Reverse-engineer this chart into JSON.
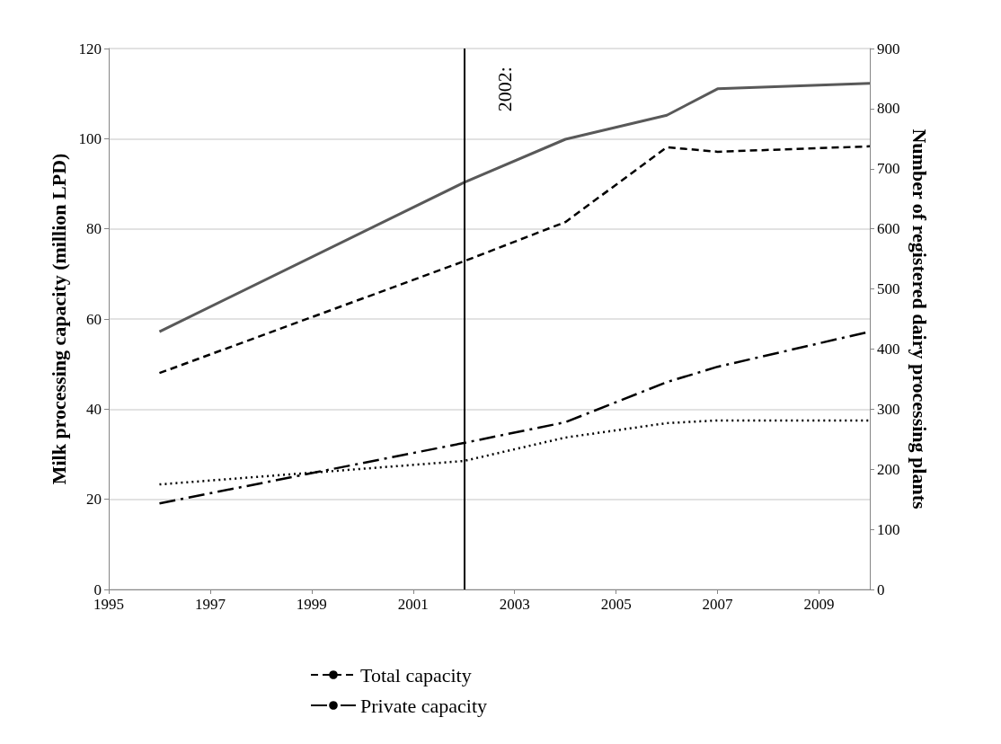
{
  "chart_data": {
    "type": "line",
    "x": [
      1996,
      2002,
      2004,
      2006,
      2007,
      2010
    ],
    "series": [
      {
        "color": "#595959",
        "line_style": "solid",
        "axis": "y2",
        "values": [
          429,
          677,
          749,
          789,
          833,
          842
        ]
      },
      {
        "name": "Total capacity",
        "color": "#000000",
        "line_style": "dashed",
        "values": [
          48.0,
          72.8,
          81.5,
          98.1,
          97.1,
          98.3
        ]
      },
      {
        "name": "Private capacity",
        "color": "#000000",
        "line_style": "dashdot",
        "values": [
          19.1,
          32.5,
          37.1,
          46.0,
          49.4,
          57.2
        ]
      },
      {
        "color": "#000000",
        "line_style": "dotted",
        "values": [
          23.3,
          28.5,
          33.7,
          36.9,
          37.5,
          37.5
        ]
      }
    ],
    "ylabel": "Milk processing capacity (million LPD)",
    "y2label": "Number of registered dairy processing plants",
    "xlim": [
      1995,
      2010
    ],
    "xticks": [
      1995,
      1997,
      1999,
      2001,
      2003,
      2005,
      2007,
      2009
    ],
    "ylim": [
      0,
      120
    ],
    "yticks": [
      0,
      20,
      40,
      60,
      80,
      100,
      120
    ],
    "y2lim": [
      0,
      900
    ],
    "y2ticks": [
      0,
      100,
      200,
      300,
      400,
      500,
      600,
      700,
      800,
      900
    ],
    "ref_lines": [
      {
        "axis": "x",
        "value": 2002,
        "label": "2002:",
        "color": "#000000"
      }
    ],
    "grid": "y",
    "legend": "bottom",
    "marker": "none"
  }
}
